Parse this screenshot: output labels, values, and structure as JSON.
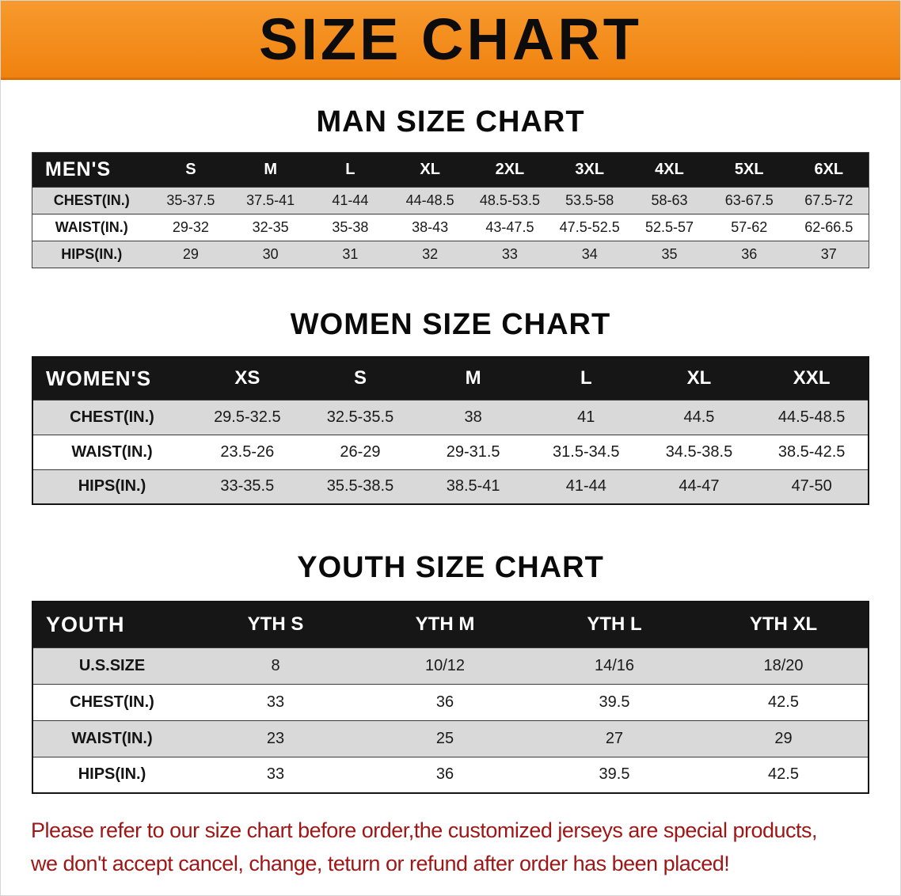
{
  "banner": {
    "title": "SIZE CHART"
  },
  "colors": {
    "banner_orange": "#f0820f",
    "table_header_black": "#161616",
    "row_stripe_gray": "#d9d9d9",
    "notice_red": "#9e1616"
  },
  "sections": [
    {
      "id": "men",
      "heading": "MAN SIZE CHART",
      "table": {
        "header": [
          "MEN'S",
          "S",
          "M",
          "L",
          "XL",
          "2XL",
          "3XL",
          "4XL",
          "5XL",
          "6XL"
        ],
        "rows": [
          [
            "CHEST(IN.)",
            "35-37.5",
            "37.5-41",
            "41-44",
            "44-48.5",
            "48.5-53.5",
            "53.5-58",
            "58-63",
            "63-67.5",
            "67.5-72"
          ],
          [
            "WAIST(IN.)",
            "29-32",
            "32-35",
            "35-38",
            "38-43",
            "43-47.5",
            "47.5-52.5",
            "52.5-57",
            "57-62",
            "62-66.5"
          ],
          [
            "HIPS(IN.)",
            "29",
            "30",
            "31",
            "32",
            "33",
            "34",
            "35",
            "36",
            "37"
          ]
        ]
      }
    },
    {
      "id": "women",
      "heading": "WOMEN SIZE CHART",
      "table": {
        "header": [
          "WOMEN'S",
          "XS",
          "S",
          "M",
          "L",
          "XL",
          "XXL"
        ],
        "rows": [
          [
            "CHEST(IN.)",
            "29.5-32.5",
            "32.5-35.5",
            "38",
            "41",
            "44.5",
            "44.5-48.5"
          ],
          [
            "WAIST(IN.)",
            "23.5-26",
            "26-29",
            "29-31.5",
            "31.5-34.5",
            "34.5-38.5",
            "38.5-42.5"
          ],
          [
            "HIPS(IN.)",
            "33-35.5",
            "35.5-38.5",
            "38.5-41",
            "41-44",
            "44-47",
            "47-50"
          ]
        ]
      }
    },
    {
      "id": "youth",
      "heading": "YOUTH SIZE CHART",
      "table": {
        "header": [
          "YOUTH",
          "YTH S",
          "YTH M",
          "YTH L",
          "YTH XL"
        ],
        "rows": [
          [
            "U.S.SIZE",
            "8",
            "10/12",
            "14/16",
            "18/20"
          ],
          [
            "CHEST(IN.)",
            "33",
            "36",
            "39.5",
            "42.5"
          ],
          [
            "WAIST(IN.)",
            "23",
            "25",
            "27",
            "29"
          ],
          [
            "HIPS(IN.)",
            "33",
            "36",
            "39.5",
            "42.5"
          ]
        ]
      }
    }
  ],
  "notice": {
    "line1": "Please refer to our size chart before order,the customized jerseys are special products,",
    "line2": "we don't accept cancel, change, teturn or refund after order has been placed!"
  }
}
